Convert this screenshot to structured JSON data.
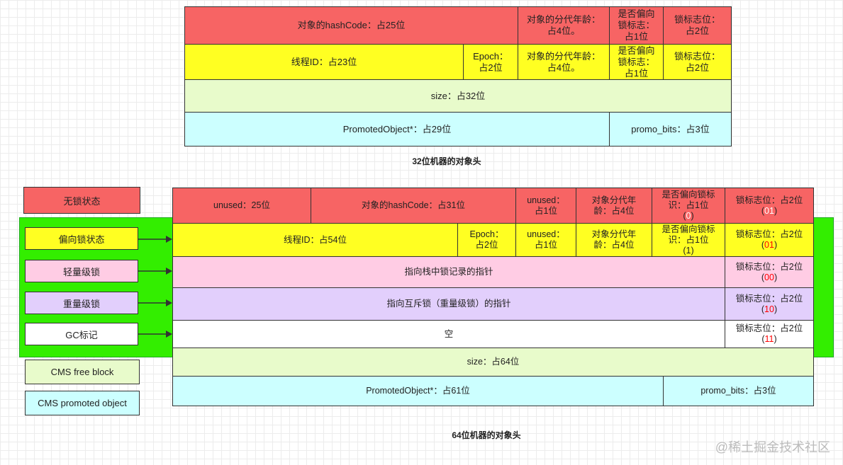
{
  "colors": {
    "red": "#f76464",
    "yellow": "#ffff22",
    "lightgreen": "#e8fbcb",
    "cyan": "#ccffff",
    "pink": "#ffcce4",
    "purple": "#e2cffc",
    "white": "#ffffff",
    "green": "#33ee00",
    "code_red": "#ff0000",
    "code_white": "#ffffff"
  },
  "table32": {
    "caption": "32位机器的对象头",
    "rows": [
      {
        "color": "red",
        "cells": [
          "对象的hashCode：占25位",
          "对象的分代年龄：\n占4位。",
          "是否偏向\n锁标志：\n占1位",
          "锁标志位：\n占2位"
        ]
      },
      {
        "color": "yellow",
        "cells": [
          "线程ID：占23位",
          "Epoch：\n占2位",
          "对象的分代年龄：\n占4位。",
          "是否偏向\n锁标志：\n占1位",
          "锁标志位：\n占2位"
        ]
      },
      {
        "color": "lightgreen",
        "cells": [
          "size：占32位"
        ]
      },
      {
        "color": "cyan",
        "cells": [
          "PromotedObject*：占29位",
          "promo_bits：占3位"
        ]
      }
    ]
  },
  "table64": {
    "caption": "64位机器的对象头",
    "rows": [
      {
        "color": "red",
        "cells": [
          {
            "t": "unused：25位"
          },
          {
            "t": "对象的hashCode：占31位"
          },
          {
            "t": "unused：\n占1位"
          },
          {
            "t": "对象分代年\n龄：占4位"
          },
          {
            "t": "是否偏向锁标\n识：占1位",
            "code": "0",
            "code_color": "code_white"
          },
          {
            "t": "锁标志位：占2位",
            "code": "01",
            "code_color": "code_white"
          }
        ]
      },
      {
        "color": "yellow",
        "cells": [
          {
            "t": "线程ID：占54位"
          },
          {
            "t": "Epoch：\n占2位"
          },
          {
            "t": "unused：\n占1位"
          },
          {
            "t": "对象分代年\n龄：占4位"
          },
          {
            "t": "是否偏向锁标\n识：占1位",
            "code": "1",
            "code_color": "code_black"
          },
          {
            "t": "锁标志位：占2位",
            "code": "01",
            "code_color": "code_red"
          }
        ]
      },
      {
        "color": "pink",
        "cells": [
          {
            "t": "指向栈中锁记录的指针"
          },
          {
            "t": "锁标志位：占2位",
            "code": "00",
            "code_color": "code_red"
          }
        ]
      },
      {
        "color": "purple",
        "cells": [
          {
            "t": "指向互斥锁（重量级锁）的指针"
          },
          {
            "t": "锁标志位：占2位",
            "code": "10",
            "code_color": "code_red"
          }
        ]
      },
      {
        "color": "white",
        "cells": [
          {
            "t": "空"
          },
          {
            "t": "锁标志位：占2位",
            "code": "11",
            "code_color": "code_red"
          }
        ]
      },
      {
        "color": "lightgreen",
        "cells": [
          {
            "t": "size：占64位"
          }
        ]
      },
      {
        "color": "cyan",
        "cells": [
          {
            "t": "PromotedObject*：占61位"
          },
          {
            "t": "promo_bits：占3位"
          }
        ]
      }
    ]
  },
  "legend": [
    {
      "label": "无锁状态",
      "color": "red"
    },
    {
      "label": "偏向锁状态",
      "color": "yellow"
    },
    {
      "label": "轻量级锁",
      "color": "pink"
    },
    {
      "label": "重量级锁",
      "color": "purple"
    },
    {
      "label": "GC标记",
      "color": "white"
    },
    {
      "label": "CMS free block",
      "color": "lightgreen"
    },
    {
      "label": "CMS promoted object",
      "color": "cyan"
    }
  ],
  "watermark": "@稀土掘金技术社区"
}
